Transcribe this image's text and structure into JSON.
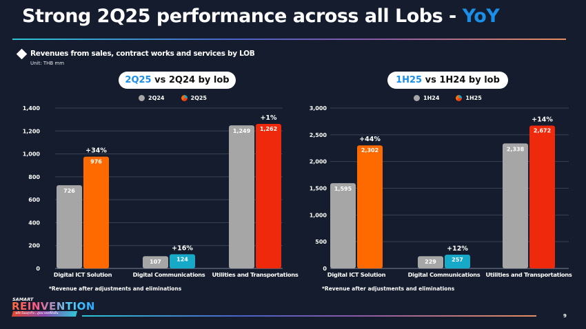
{
  "header": {
    "title_main": "Strong 2Q25 performance across all Lobs - ",
    "title_accent": "YoY"
  },
  "section": {
    "subtitle": "Revenues from sales, contract works and services by LOB",
    "unit": "Unit: THB mm"
  },
  "colors": {
    "prior": "#a6a6a6",
    "digital_ict": "#ff6a00",
    "digital_comm": "#16aac8",
    "utilities": "#ef2a0c",
    "accent": "#1a8fe8",
    "background": "#141c2e"
  },
  "chart_data": [
    {
      "type": "bar",
      "title_accent": "2Q25",
      "title_rest": " vs 2Q24 by lob",
      "categories": [
        "Digital ICT Solution",
        "Digital Communications",
        "Utilities and Transportations"
      ],
      "series": [
        {
          "name": "2Q24",
          "values": [
            726,
            107,
            1249
          ],
          "labels": [
            "726",
            "107",
            "1,249"
          ]
        },
        {
          "name": "2Q25",
          "values": [
            976,
            124,
            1262
          ],
          "labels": [
            "976",
            "124",
            "1,262"
          ]
        }
      ],
      "growth": [
        "+34%",
        "+16%",
        "+1%"
      ],
      "ylim": [
        0,
        1400
      ],
      "yticks": [
        0,
        200,
        400,
        600,
        800,
        1000,
        1200,
        1400
      ],
      "ytick_labels": [
        "0",
        "200",
        "400",
        "600",
        "800",
        "1,000",
        "1,200",
        "1,400"
      ],
      "grid": true,
      "legend": "top-center",
      "footnote": "*Revenue after adjustments and eliminations"
    },
    {
      "type": "bar",
      "title_accent": "1H25",
      "title_rest": " vs 1H24 by lob",
      "categories": [
        "Digital ICT Solution",
        "Digital Communications",
        "Utilities and Transportations"
      ],
      "series": [
        {
          "name": "1H24",
          "values": [
            1595,
            229,
            2338
          ],
          "labels": [
            "1,595",
            "229",
            "2,338"
          ]
        },
        {
          "name": "1H25",
          "values": [
            2302,
            257,
            2672
          ],
          "labels": [
            "2,302",
            "257",
            "2,672"
          ]
        }
      ],
      "growth": [
        "+44%",
        "+12%",
        "+14%"
      ],
      "ylim": [
        0,
        3000
      ],
      "yticks": [
        0,
        500,
        1000,
        1500,
        2000,
        2500,
        3000
      ],
      "ytick_labels": [
        "0",
        "500",
        "1,000",
        "1,500",
        "2,000",
        "2,500",
        "3,000"
      ],
      "grid": true,
      "legend": "top-center",
      "footnote": "*Revenue after adjustments and eliminations"
    }
  ],
  "footer": {
    "logo_small": "SAMART",
    "logo_main": "REINVENTION",
    "logo_tag": "พลิกโฉมธุรกิจ...สู่อนาคตที่ยั่งยืน",
    "page_number": "9"
  }
}
